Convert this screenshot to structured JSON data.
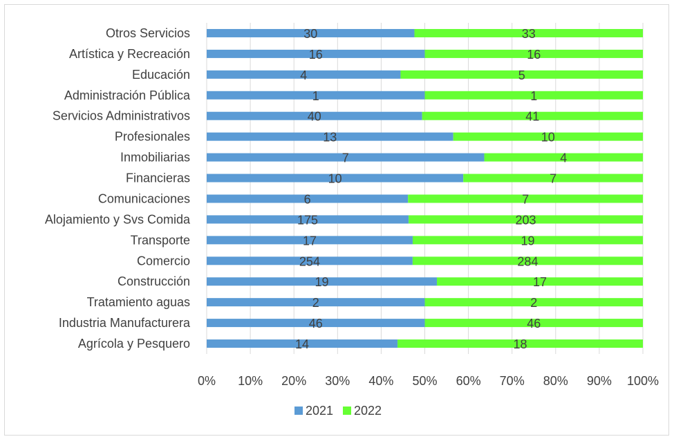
{
  "chart_data": {
    "type": "bar",
    "orientation": "horizontal",
    "stacked": "percent",
    "categories": [
      "Otros Servicios",
      "Artística y Recreación",
      "Educación",
      "Administración Pública",
      "Servicios Administrativos",
      "Profesionales",
      "Inmobiliarias",
      "Financieras",
      "Comunicaciones",
      "Alojamiento y Svs Comida",
      "Transporte",
      "Comercio",
      "Construcción",
      "Tratamiento aguas",
      "Industria Manufacturera",
      "Agrícola y Pesquero"
    ],
    "series": [
      {
        "name": "2021",
        "color": "#5b9bd5",
        "values": [
          30,
          16,
          4,
          1,
          40,
          13,
          7,
          10,
          6,
          175,
          17,
          254,
          19,
          2,
          46,
          14
        ]
      },
      {
        "name": "2022",
        "color": "#66ff33",
        "values": [
          33,
          16,
          5,
          1,
          41,
          10,
          4,
          7,
          7,
          203,
          19,
          284,
          17,
          2,
          46,
          18
        ]
      }
    ],
    "x_ticks": [
      "0%",
      "10%",
      "20%",
      "30%",
      "40%",
      "50%",
      "60%",
      "70%",
      "80%",
      "90%",
      "100%"
    ],
    "xlim": [
      0,
      100
    ],
    "grid": "vertical",
    "legend_position": "bottom"
  }
}
